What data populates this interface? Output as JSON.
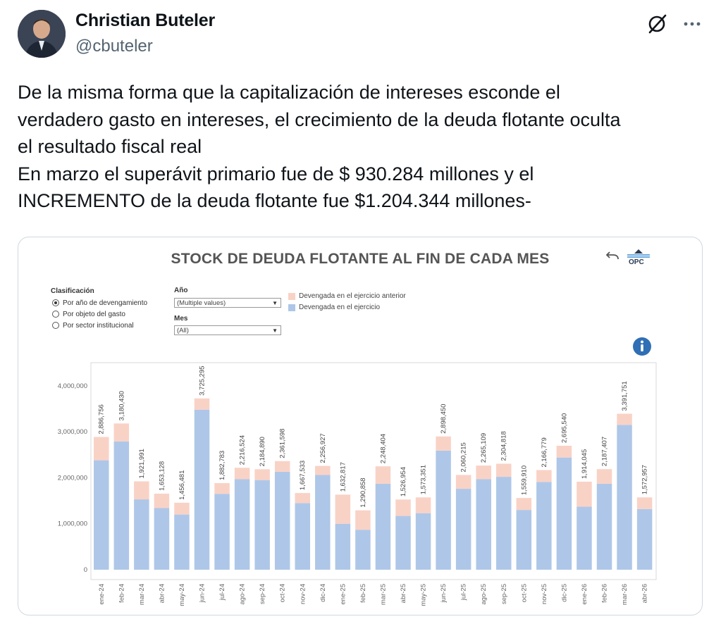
{
  "tweet": {
    "author_name": "Christian Buteler",
    "author_handle": "@cbuteler",
    "text_lines": [
      "De la misma forma que la capitalización de intereses esconde el",
      "verdadero gasto en intereses, el crecimiento de la deuda flotante oculta",
      "el resultado fiscal real",
      "En marzo el superávit primario fue de $ 930.284 millones y el",
      "INCREMENTO de la deuda flotante fue $1.204.344 millones-"
    ],
    "icons": [
      "avatar",
      "grok-icon",
      "more-icon"
    ]
  },
  "dashboard": {
    "title": "STOCK DE DEUDA FLOTANTE AL FIN DE CADA MES",
    "logo_text": "OPC",
    "filters": {
      "clasificacion_label": "Clasificación",
      "options": [
        "Por año de devengamiento",
        "Por objeto del gasto",
        "Por sector institucional"
      ],
      "selected_index": 0,
      "anio_label": "Año",
      "anio_value": "(Multiple values)",
      "mes_label": "Mes",
      "mes_value": "(All)"
    },
    "legend": [
      {
        "label": "Devengada en el ejercicio anterior",
        "color": "#f9d2c6"
      },
      {
        "label": "Devengada en el ejercicio",
        "color": "#aec7e8"
      }
    ],
    "colors": {
      "prior": "#f9d2c6",
      "current": "#aec7e8"
    }
  },
  "chart_data": {
    "type": "bar",
    "stacked": true,
    "categories": [
      "ene-24",
      "feb-24",
      "mar-24",
      "abr-24",
      "may-24",
      "jun-24",
      "jul-24",
      "ago-24",
      "sep-24",
      "oct-24",
      "nov-24",
      "dic-24",
      "ene-25",
      "feb-25",
      "mar-25",
      "abr-25",
      "may-25",
      "jun-25",
      "jul-25",
      "ago-25",
      "sep-25",
      "oct-25",
      "nov-25",
      "dic-25",
      "ene-26",
      "feb-26",
      "mar-26",
      "abr-26"
    ],
    "series": [
      {
        "name": "Devengada en el ejercicio",
        "values": [
          2380000,
          2790000,
          1530000,
          1340000,
          1200000,
          3480000,
          1650000,
          1970000,
          1950000,
          2130000,
          1450000,
          2060000,
          1000000,
          870000,
          1870000,
          1170000,
          1230000,
          2590000,
          1760000,
          1970000,
          2020000,
          1300000,
          1910000,
          2440000,
          1370000,
          1870000,
          3150000,
          1320000
        ]
      },
      {
        "name": "Devengada en el ejercicio anterior",
        "values": [
          506756,
          390430,
          391991,
          313128,
          256481,
          245295,
          232783,
          246524,
          234890,
          231598,
          217533,
          196927,
          632817,
          420858,
          378404,
          356954,
          343351,
          308450,
          300215,
          295109,
          284818,
          259910,
          256779,
          255540,
          544045,
          317407,
          241751,
          252957
        ]
      }
    ],
    "totals": [
      2886756,
      3180430,
      1921991,
      1653128,
      1456481,
      3725295,
      1882783,
      2216524,
      2184890,
      2361598,
      1667533,
      2256927,
      1632817,
      1290858,
      2248404,
      1526954,
      1573351,
      2898450,
      2060215,
      2265109,
      2304818,
      1559910,
      2166779,
      2695540,
      1914045,
      2187407,
      3391751,
      1572957
    ],
    "total_labels": [
      "2,886,756",
      "3,180,430",
      "1,921,991",
      "1,653,128",
      "1,456,481",
      "3,725,295",
      "1,882,783",
      "2,216,524",
      "2,184,890",
      "2,361,598",
      "1,667,533",
      "2,256,927",
      "1,632,817",
      "1,290,858",
      "2,248,404",
      "1,526,954",
      "1,573,351",
      "2,898,450",
      "2,060,215",
      "2,265,109",
      "2,304,818",
      "1,559,910",
      "2,166,779",
      "2,695,540",
      "1,914,045",
      "2,187,407",
      "3,391,751",
      "1,572,957"
    ],
    "y_ticks": [
      0,
      1000000,
      2000000,
      3000000,
      4000000
    ],
    "y_tick_labels": [
      "0",
      "1,000,000",
      "2,000,000",
      "3,000,000",
      "4,000,000"
    ],
    "ylim": [
      0,
      4600000
    ],
    "title": "STOCK DE DEUDA FLOTANTE AL FIN DE CADA MES",
    "xlabel": "",
    "ylabel": "",
    "grid": false,
    "legend_position": "top"
  }
}
